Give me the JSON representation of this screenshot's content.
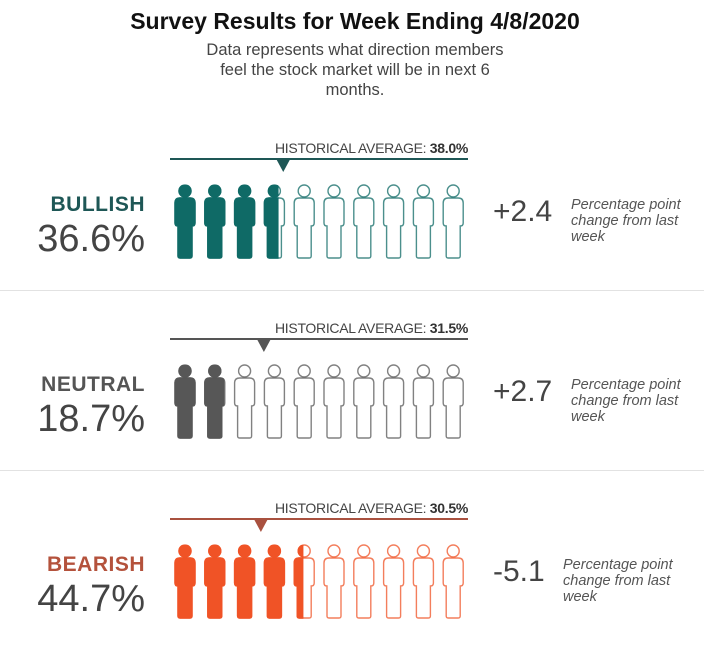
{
  "title": "Survey Results for Week Ending 4/8/2020",
  "subtitle": "Data represents what direction members feel the stock market will be in next 6 months.",
  "chart_data": {
    "type": "pictogram",
    "figures_per_row": 10,
    "hist_label": "HISTORICAL AVERAGE:",
    "change_note": "Percentage point change from last week",
    "rows": [
      {
        "category": "BULLISH",
        "value": 36.6,
        "value_label": "36.6%",
        "historical_average": 38.0,
        "historical_label": "38.0%",
        "change": "+2.4",
        "color": "#0f6a66",
        "label_color": "#1e5756",
        "line_color": "#1e5756"
      },
      {
        "category": "NEUTRAL",
        "value": 18.7,
        "value_label": "18.7%",
        "historical_average": 31.5,
        "historical_label": "31.5%",
        "change": "+2.7",
        "color": "#575757",
        "label_color": "#555555",
        "line_color": "#555555"
      },
      {
        "category": "BEARISH",
        "value": 44.7,
        "value_label": "44.7%",
        "historical_average": 30.5,
        "historical_label": "30.5%",
        "change": "-5.1",
        "color": "#f05326",
        "label_color": "#b4523c",
        "line_color": "#a9513f"
      }
    ]
  }
}
